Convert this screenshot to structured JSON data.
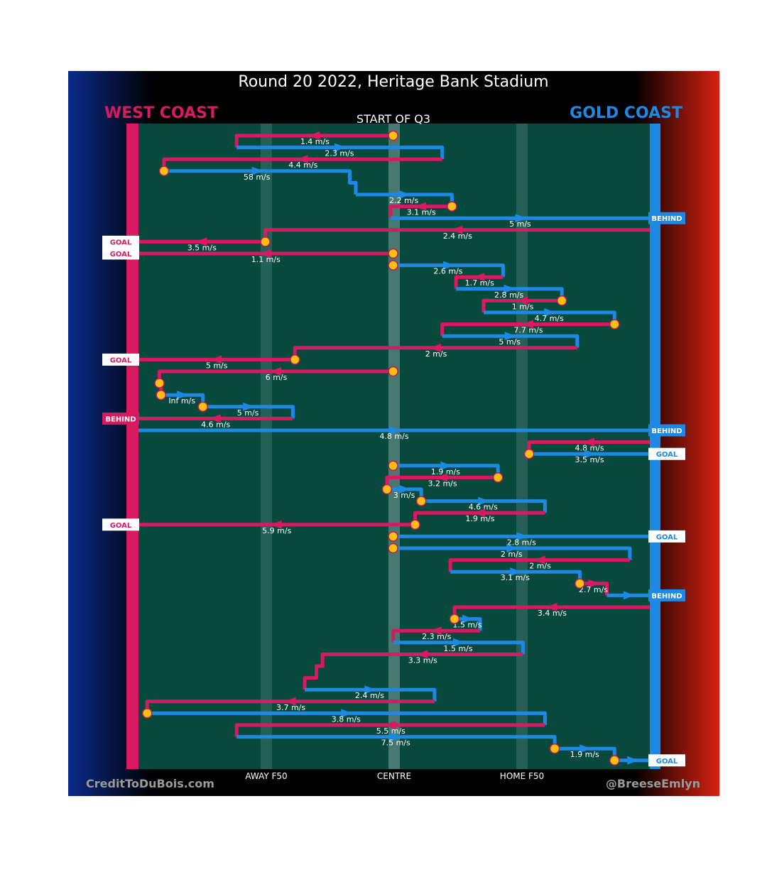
{
  "title": "Round 20 2022, Heritage Bank Stadium",
  "subtitle": "START OF Q3",
  "teams": {
    "left": {
      "name": "WEST COAST",
      "color": "#d81b60"
    },
    "right": {
      "name": "GOLD COAST",
      "color": "#1e88e5"
    }
  },
  "credit_left": "CreditToDuBois.com",
  "credit_right": "@BreeseEmlyn",
  "colors": {
    "field": "#074a3d",
    "west": "#d81b60",
    "gold": "#1e88e5",
    "marker": "#fdbf12",
    "stripe": "#5d8a83"
  },
  "chart_data": {
    "type": "line",
    "description_axis": "field position from West Coast goal (0) to Gold Coast goal (100)",
    "x_ticks": [
      {
        "label": "AWAY F50",
        "pos": 25
      },
      {
        "label": "CENTRE",
        "pos": 50
      },
      {
        "label": "HOME F50",
        "pos": 75
      }
    ],
    "xlim": [
      0,
      100
    ],
    "chains": [
      {
        "team": "west",
        "speed": "1.4 m/s",
        "pts": [
          [
            49.8,
            1
          ],
          [
            19.2,
            1
          ],
          [
            19.2,
            2
          ]
        ]
      },
      {
        "team": "gold",
        "speed": "2.3 m/s",
        "pts": [
          [
            19.2,
            2
          ],
          [
            59.4,
            2
          ],
          [
            59.4,
            3
          ]
        ]
      },
      {
        "team": "west",
        "speed": "4.4 m/s",
        "pts": [
          [
            59.4,
            3
          ],
          [
            5.0,
            3
          ],
          [
            5.0,
            4
          ]
        ]
      },
      {
        "team": "gold",
        "speed": "58 m/s",
        "pts": [
          [
            5.0,
            4
          ],
          [
            41.3,
            4
          ],
          [
            41.3,
            5
          ],
          [
            42.5,
            5
          ],
          [
            42.5,
            6
          ]
        ]
      },
      {
        "team": "gold",
        "speed": "2.2 m/s",
        "pts": [
          [
            42.5,
            6
          ],
          [
            61.3,
            6
          ],
          [
            61.3,
            7
          ]
        ]
      },
      {
        "team": "west",
        "speed": "3.1 m/s",
        "pts": [
          [
            61.3,
            7
          ],
          [
            49.3,
            7
          ],
          [
            49.3,
            8
          ]
        ]
      },
      {
        "team": "gold",
        "speed": "5 m/s",
        "pts": [
          [
            49.3,
            8
          ],
          [
            100,
            8
          ]
        ],
        "label": "BEHIND"
      },
      {
        "team": "west",
        "speed": "2.4 m/s",
        "pts": [
          [
            100,
            9
          ],
          [
            24.8,
            9
          ],
          [
            24.8,
            10
          ]
        ]
      },
      {
        "team": "west",
        "speed": "3.5 m/s",
        "pts": [
          [
            24.8,
            10
          ],
          [
            0,
            10
          ]
        ],
        "label": "GOAL"
      },
      {
        "team": "west",
        "speed": "1.1 m/s",
        "pts": [
          [
            49.8,
            11
          ],
          [
            0,
            11
          ]
        ],
        "label": "GOAL"
      },
      {
        "team": "gold",
        "speed": "2.6 m/s",
        "pts": [
          [
            49.8,
            12
          ],
          [
            71.3,
            12
          ],
          [
            71.3,
            13
          ]
        ]
      },
      {
        "team": "west",
        "speed": "1.7 m/s",
        "pts": [
          [
            71.3,
            13
          ],
          [
            62.1,
            13
          ],
          [
            62.1,
            14
          ]
        ]
      },
      {
        "team": "gold",
        "speed": "2.8 m/s",
        "pts": [
          [
            62.1,
            14
          ],
          [
            82.8,
            14
          ],
          [
            82.8,
            15
          ]
        ]
      },
      {
        "team": "west",
        "speed": "1 m/s",
        "pts": [
          [
            82.8,
            15
          ],
          [
            67.5,
            15
          ],
          [
            67.5,
            16
          ]
        ]
      },
      {
        "team": "gold",
        "speed": "4.7 m/s",
        "pts": [
          [
            67.5,
            16
          ],
          [
            93.1,
            16
          ],
          [
            93.1,
            17
          ]
        ]
      },
      {
        "team": "west",
        "speed": "7.7 m/s",
        "pts": [
          [
            93.1,
            17
          ],
          [
            59.4,
            17
          ],
          [
            59.4,
            18
          ]
        ]
      },
      {
        "team": "gold",
        "speed": "5 m/s",
        "pts": [
          [
            59.4,
            18
          ],
          [
            85.8,
            18
          ],
          [
            85.8,
            19
          ]
        ]
      },
      {
        "team": "west",
        "speed": "2 m/s",
        "pts": [
          [
            85.8,
            19
          ],
          [
            30.6,
            19
          ],
          [
            30.6,
            20
          ]
        ]
      },
      {
        "team": "west",
        "speed": "5 m/s",
        "pts": [
          [
            30.6,
            20
          ],
          [
            0,
            20
          ]
        ],
        "label": "GOAL"
      },
      {
        "team": "west",
        "speed": "6 m/s",
        "pts": [
          [
            49.8,
            21
          ],
          [
            4.1,
            21
          ],
          [
            4.1,
            22
          ]
        ]
      },
      {
        "team": "west",
        "speed": "",
        "pts": [
          [
            4.4,
            22
          ],
          [
            4.4,
            23
          ]
        ]
      },
      {
        "team": "gold",
        "speed": "Inf m/s",
        "pts": [
          [
            4.4,
            23
          ],
          [
            12.6,
            23
          ],
          [
            12.6,
            24
          ]
        ]
      },
      {
        "team": "gold",
        "speed": "5 m/s",
        "pts": [
          [
            12.6,
            24
          ],
          [
            30.2,
            24
          ],
          [
            30.2,
            25
          ]
        ]
      },
      {
        "team": "west",
        "speed": "4.6 m/s",
        "pts": [
          [
            30.2,
            25
          ],
          [
            0,
            25
          ]
        ],
        "label": "BEHIND"
      },
      {
        "team": "gold",
        "speed": "4.8 m/s",
        "pts": [
          [
            0,
            26
          ],
          [
            100,
            26
          ]
        ],
        "label": "BEHIND"
      },
      {
        "team": "west",
        "speed": "4.8 m/s",
        "pts": [
          [
            100,
            27
          ],
          [
            76.4,
            27
          ],
          [
            76.4,
            28
          ]
        ]
      },
      {
        "team": "gold",
        "speed": "3.5 m/s",
        "pts": [
          [
            76.4,
            28
          ],
          [
            100,
            28
          ]
        ],
        "label": "GOAL"
      },
      {
        "team": "gold",
        "speed": "1.9 m/s",
        "pts": [
          [
            49.8,
            29
          ],
          [
            70.3,
            29
          ],
          [
            70.3,
            30
          ]
        ]
      },
      {
        "team": "west",
        "speed": "3.2 m/s",
        "pts": [
          [
            70.3,
            30
          ],
          [
            48.6,
            30
          ],
          [
            48.6,
            31
          ]
        ]
      },
      {
        "team": "gold",
        "speed": "3 m/s",
        "pts": [
          [
            48.6,
            31
          ],
          [
            55.3,
            31
          ],
          [
            55.3,
            32
          ]
        ]
      },
      {
        "team": "gold",
        "speed": "4.6 m/s",
        "pts": [
          [
            55.3,
            32
          ],
          [
            79.5,
            32
          ],
          [
            79.5,
            33
          ]
        ]
      },
      {
        "team": "west",
        "speed": "1.9 m/s",
        "pts": [
          [
            79.5,
            33
          ],
          [
            54.1,
            33
          ],
          [
            54.1,
            34
          ]
        ]
      },
      {
        "team": "west",
        "speed": "5.9 m/s",
        "pts": [
          [
            54.1,
            34
          ],
          [
            0,
            34
          ]
        ],
        "label": "GOAL"
      },
      {
        "team": "gold",
        "speed": "2.8 m/s",
        "pts": [
          [
            49.8,
            35
          ],
          [
            100,
            35
          ]
        ],
        "label": "GOAL"
      },
      {
        "team": "gold",
        "speed": "2 m/s",
        "pts": [
          [
            49.8,
            36
          ],
          [
            96.1,
            36
          ],
          [
            96.1,
            37
          ]
        ]
      },
      {
        "team": "west",
        "speed": "2 m/s",
        "pts": [
          [
            96.1,
            37
          ],
          [
            61.0,
            37
          ],
          [
            61.0,
            38
          ]
        ]
      },
      {
        "team": "gold",
        "speed": "3.1 m/s",
        "pts": [
          [
            61.0,
            38
          ],
          [
            86.3,
            38
          ],
          [
            86.3,
            39
          ]
        ]
      },
      {
        "team": "west",
        "speed": "2.7 m/s",
        "pts": [
          [
            86.3,
            39
          ],
          [
            91.6,
            39
          ],
          [
            91.6,
            40
          ]
        ]
      },
      {
        "team": "gold",
        "speed": "",
        "pts": [
          [
            91.6,
            40
          ],
          [
            100,
            40
          ]
        ],
        "label": "BEHIND"
      },
      {
        "team": "west",
        "speed": "3.4 m/s",
        "pts": [
          [
            100,
            41
          ],
          [
            61.8,
            41
          ],
          [
            61.8,
            42
          ]
        ]
      },
      {
        "team": "gold",
        "speed": "1.5 m/s",
        "pts": [
          [
            61.8,
            42
          ],
          [
            66.8,
            42
          ],
          [
            66.8,
            43
          ]
        ]
      },
      {
        "team": "west",
        "speed": "2.3 m/s",
        "pts": [
          [
            66.8,
            43
          ],
          [
            49.8,
            43
          ],
          [
            49.8,
            44
          ]
        ]
      },
      {
        "team": "gold",
        "speed": "1.5 m/s",
        "pts": [
          [
            49.8,
            44
          ],
          [
            75.2,
            44
          ],
          [
            75.2,
            45
          ]
        ]
      },
      {
        "team": "west",
        "speed": "3.3 m/s",
        "pts": [
          [
            75.2,
            45
          ],
          [
            36.0,
            45
          ],
          [
            36.0,
            46
          ],
          [
            34.8,
            46
          ],
          [
            34.8,
            47
          ],
          [
            32.5,
            47
          ],
          [
            32.5,
            48
          ]
        ]
      },
      {
        "team": "gold",
        "speed": "2.4 m/s",
        "pts": [
          [
            32.5,
            48
          ],
          [
            57.9,
            48
          ],
          [
            57.9,
            49
          ]
        ]
      },
      {
        "team": "west",
        "speed": "3.7 m/s",
        "pts": [
          [
            57.9,
            49
          ],
          [
            1.7,
            49
          ],
          [
            1.7,
            50
          ]
        ]
      },
      {
        "team": "gold",
        "speed": "3.8 m/s",
        "pts": [
          [
            1.7,
            50
          ],
          [
            79.5,
            50
          ],
          [
            79.5,
            51
          ]
        ]
      },
      {
        "team": "west",
        "speed": "5.5 m/s",
        "pts": [
          [
            79.5,
            51
          ],
          [
            19.2,
            51
          ],
          [
            19.2,
            52
          ]
        ]
      },
      {
        "team": "gold",
        "speed": "7.5 m/s",
        "pts": [
          [
            19.2,
            52
          ],
          [
            81.4,
            52
          ],
          [
            81.4,
            53
          ]
        ]
      },
      {
        "team": "gold",
        "speed": "1.9 m/s",
        "pts": [
          [
            81.4,
            53
          ],
          [
            93.1,
            53
          ],
          [
            93.1,
            54
          ]
        ]
      },
      {
        "team": "gold",
        "speed": "",
        "pts": [
          [
            93.1,
            54
          ],
          [
            100,
            54
          ]
        ],
        "label": "GOAL"
      }
    ],
    "markers": [
      [
        49.8,
        1
      ],
      [
        5.0,
        4
      ],
      [
        61.3,
        7
      ],
      [
        24.8,
        10
      ],
      [
        49.8,
        11
      ],
      [
        49.8,
        12
      ],
      [
        82.8,
        15
      ],
      [
        93.1,
        17
      ],
      [
        30.6,
        20
      ],
      [
        49.8,
        21
      ],
      [
        4.1,
        22
      ],
      [
        4.4,
        23
      ],
      [
        12.6,
        24
      ],
      [
        76.4,
        28
      ],
      [
        49.8,
        29
      ],
      [
        70.3,
        30
      ],
      [
        48.6,
        31
      ],
      [
        55.3,
        32
      ],
      [
        54.1,
        34
      ],
      [
        49.8,
        35
      ],
      [
        49.8,
        36
      ],
      [
        86.3,
        39
      ],
      [
        61.8,
        42
      ],
      [
        1.7,
        50
      ],
      [
        81.4,
        53
      ],
      [
        93.1,
        54
      ]
    ]
  }
}
